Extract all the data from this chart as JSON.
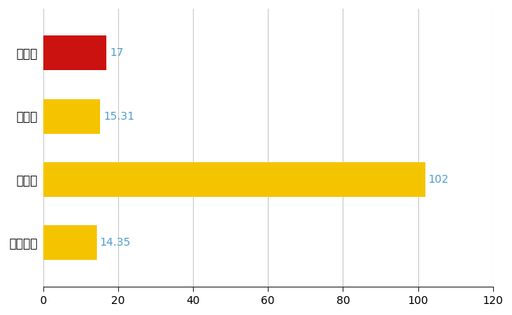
{
  "categories": [
    "三島市",
    "県平均",
    "県最大",
    "全国平均"
  ],
  "values": [
    17,
    15.31,
    102,
    14.35
  ],
  "bar_colors": [
    "#cc1111",
    "#f5c400",
    "#f5c400",
    "#f5c400"
  ],
  "value_labels": [
    "17",
    "15.31",
    "102",
    "14.35"
  ],
  "label_color": "#4f9fcc",
  "xlim": [
    0,
    120
  ],
  "xticks": [
    0,
    20,
    40,
    60,
    80,
    100,
    120
  ],
  "grid_color": "#cccccc",
  "background_color": "#ffffff",
  "bar_height": 0.55,
  "label_fontsize": 10,
  "tick_fontsize": 10,
  "ytick_fontsize": 11
}
